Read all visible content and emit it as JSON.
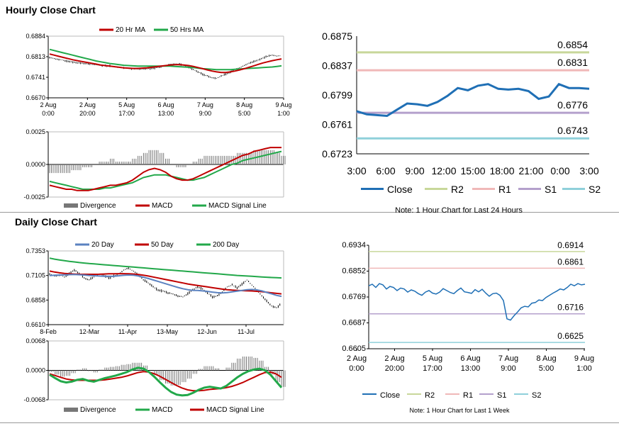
{
  "sections": {
    "hourly_title": "Hourly Close Chart",
    "daily_title": "Daily Close Chart"
  },
  "colors": {
    "red": "#c00000",
    "green": "#22a84a",
    "blue": "#1f6fb5",
    "bluegray": "#5b82c0",
    "r2": "#c8d79a",
    "r1": "#f0b8b8",
    "s1": "#b4a0cc",
    "s2": "#8fd0da",
    "gray": "#777777",
    "black": "#000000"
  },
  "chart_data": [
    {
      "id": "hourly_price",
      "type": "line",
      "title": "",
      "legend": [
        "20 Hr MA",
        "50 Hrs MA"
      ],
      "legend_colors": [
        "#c00000",
        "#22a84a"
      ],
      "ylim": [
        0.667,
        0.6884
      ],
      "yticks": [
        "0.6884",
        "0.6813",
        "0.6741",
        "0.6670"
      ],
      "xticks": [
        [
          "2 Aug",
          "0:00"
        ],
        [
          "2 Aug",
          "20:00"
        ],
        [
          "5 Aug",
          "17:00"
        ],
        [
          "6 Aug",
          "13:00"
        ],
        [
          "7 Aug",
          "9:00"
        ],
        [
          "8 Aug",
          "5:00"
        ],
        [
          "9 Aug",
          "1:00"
        ]
      ],
      "close": [
        0.681,
        0.6806,
        0.6803,
        0.68,
        0.6797,
        0.6794,
        0.6792,
        0.679,
        0.6788,
        0.6786,
        0.6784,
        0.6783,
        0.6782,
        0.6781,
        0.6779,
        0.6776,
        0.6774,
        0.6772,
        0.677,
        0.677,
        0.677,
        0.6771,
        0.6773,
        0.6775,
        0.6778,
        0.6782,
        0.6786,
        0.6788,
        0.6786,
        0.6782,
        0.6776,
        0.6768,
        0.676,
        0.6752,
        0.6746,
        0.674,
        0.6738,
        0.6745,
        0.6752,
        0.676,
        0.6768,
        0.6775,
        0.6782,
        0.679,
        0.6796,
        0.6802,
        0.6808,
        0.6814,
        0.6818,
        0.6815,
        0.6816
      ],
      "series": [
        {
          "name": "20 Hr MA",
          "values": [
            0.6822,
            0.6818,
            0.6814,
            0.681,
            0.6806,
            0.6802,
            0.6799,
            0.6796,
            0.6793,
            0.679,
            0.6787,
            0.6784,
            0.6782,
            0.678,
            0.6778,
            0.6776,
            0.6774,
            0.6773,
            0.6772,
            0.6772,
            0.6773,
            0.6774,
            0.6776,
            0.6778,
            0.678,
            0.6782,
            0.6784,
            0.6785,
            0.6785,
            0.6784,
            0.6782,
            0.6779,
            0.6775,
            0.6771,
            0.6767,
            0.6763,
            0.676,
            0.6758,
            0.6758,
            0.676,
            0.6763,
            0.6767,
            0.6771,
            0.6776,
            0.6781,
            0.6786,
            0.6791,
            0.6795,
            0.6799,
            0.6802,
            0.6805
          ]
        },
        {
          "name": "50 Hrs MA",
          "values": [
            0.6838,
            0.6834,
            0.683,
            0.6826,
            0.6822,
            0.6818,
            0.6814,
            0.681,
            0.6806,
            0.6802,
            0.6798,
            0.6795,
            0.6792,
            0.6789,
            0.6787,
            0.6785,
            0.6783,
            0.6782,
            0.6781,
            0.678,
            0.678,
            0.678,
            0.678,
            0.678,
            0.678,
            0.678,
            0.678,
            0.6779,
            0.6778,
            0.6777,
            0.6776,
            0.6775,
            0.6773,
            0.6771,
            0.677,
            0.6769,
            0.6768,
            0.6768,
            0.6768,
            0.6768,
            0.6769,
            0.677,
            0.6771,
            0.6772,
            0.6773,
            0.6774,
            0.6775,
            0.6776,
            0.6777,
            0.6779,
            0.6781
          ]
        }
      ]
    },
    {
      "id": "hourly_macd",
      "type": "line",
      "title": "",
      "legend": [
        "Divergence",
        "MACD",
        "MACD Signal Line"
      ],
      "legend_colors": [
        "#777777",
        "#c00000",
        "#22a84a"
      ],
      "ylim": [
        -0.0025,
        0.0025
      ],
      "yticks": [
        "0.0025",
        "0.0000",
        "-0.0025"
      ],
      "series": [
        {
          "name": "MACD",
          "values": [
            -0.0016,
            -0.0017,
            -0.0018,
            -0.0019,
            -0.0019,
            -0.002,
            -0.002,
            -0.002,
            -0.0019,
            -0.0018,
            -0.0017,
            -0.0016,
            -0.0016,
            -0.0015,
            -0.0014,
            -0.0012,
            -0.0009,
            -0.0006,
            -0.0004,
            -0.0003,
            -0.0004,
            -0.0006,
            -0.0009,
            -0.0011,
            -0.0012,
            -0.0012,
            -0.0011,
            -0.0009,
            -0.0007,
            -0.0005,
            -0.0003,
            -0.0001,
            0.0001,
            0.0003,
            0.0005,
            0.0007,
            0.0008,
            0.001,
            0.0011,
            0.0012,
            0.0013,
            0.0013,
            0.0013
          ]
        },
        {
          "name": "MACD Signal Line",
          "values": [
            -0.0013,
            -0.0014,
            -0.0015,
            -0.0016,
            -0.0017,
            -0.0018,
            -0.0019,
            -0.0019,
            -0.0019,
            -0.0019,
            -0.0018,
            -0.0018,
            -0.0017,
            -0.0016,
            -0.0015,
            -0.0014,
            -0.0012,
            -0.001,
            -0.0009,
            -0.0008,
            -0.0008,
            -0.0008,
            -0.0009,
            -0.001,
            -0.0011,
            -0.0012,
            -0.0012,
            -0.0011,
            -0.001,
            -0.0008,
            -0.0006,
            -0.0004,
            -0.0002,
            0.0,
            0.0001,
            0.0003,
            0.0004,
            0.0005,
            0.0006,
            0.0007,
            0.0008,
            0.0009,
            0.001
          ]
        }
      ]
    },
    {
      "id": "hourly_24h",
      "type": "line",
      "title": "",
      "xlabels": [
        "3:00",
        "6:00",
        "9:00",
        "12:00",
        "15:00",
        "18:00",
        "21:00",
        "0:00",
        "3:00"
      ],
      "yticks": [
        "0.6875",
        "0.6837",
        "0.6799",
        "0.6761",
        "0.6723"
      ],
      "ylim": [
        0.6723,
        0.6875
      ],
      "close": [
        0.6778,
        0.6774,
        0.6773,
        0.6772,
        0.678,
        0.6788,
        0.6787,
        0.6785,
        0.679,
        0.6798,
        0.6808,
        0.6805,
        0.6811,
        0.6813,
        0.6807,
        0.6806,
        0.6807,
        0.6804,
        0.6794,
        0.6797,
        0.6813,
        0.6808,
        0.6808,
        0.6807
      ],
      "levels": [
        {
          "name": "R2",
          "value": 0.6854,
          "label": "0.6854"
        },
        {
          "name": "R1",
          "value": 0.6831,
          "label": "0.6831"
        },
        {
          "name": "S1",
          "value": 0.6776,
          "label": "0.6776"
        },
        {
          "name": "S2",
          "value": 0.6743,
          "label": "0.6743"
        }
      ],
      "legend": [
        "Close",
        "R2",
        "R1",
        "S1",
        "S2"
      ],
      "note": "Note: 1 Hour Chart for Last 24 Hours"
    },
    {
      "id": "daily_price",
      "type": "line",
      "title": "",
      "legend": [
        "20 Day",
        "50 Day",
        "200 Day"
      ],
      "legend_colors": [
        "#5b82c0",
        "#c00000",
        "#22a84a"
      ],
      "ylim": [
        0.661,
        0.7353
      ],
      "yticks": [
        "0.7353",
        "0.7105",
        "0.6858",
        "0.6610"
      ],
      "xticks": [
        "8-Feb",
        "12-Mar",
        "11-Apr",
        "13-May",
        "12-Jun",
        "11-Jul"
      ],
      "close": [
        0.712,
        0.71,
        0.711,
        0.709,
        0.713,
        0.716,
        0.713,
        0.708,
        0.706,
        0.709,
        0.712,
        0.711,
        0.708,
        0.71,
        0.712,
        0.716,
        0.718,
        0.715,
        0.711,
        0.706,
        0.703,
        0.699,
        0.696,
        0.695,
        0.693,
        0.692,
        0.69,
        0.689,
        0.692,
        0.696,
        0.699,
        0.697,
        0.693,
        0.689,
        0.69,
        0.694,
        0.699,
        0.701,
        0.698,
        0.702,
        0.706,
        0.701,
        0.696,
        0.69,
        0.685,
        0.68,
        0.678,
        0.682
      ],
      "series": [
        {
          "name": "20 Day",
          "values": [
            0.7105,
            0.7108,
            0.711,
            0.7112,
            0.7114,
            0.7115,
            0.7113,
            0.711,
            0.7106,
            0.7103,
            0.71,
            0.7098,
            0.7097,
            0.7098,
            0.7102,
            0.7107,
            0.711,
            0.7108,
            0.71,
            0.7088,
            0.7075,
            0.706,
            0.7045,
            0.703,
            0.7015,
            0.7,
            0.6985,
            0.6972,
            0.6962,
            0.6956,
            0.6954,
            0.695,
            0.6945,
            0.6938,
            0.6932,
            0.693,
            0.6933,
            0.694,
            0.6948,
            0.6955,
            0.6962,
            0.6964,
            0.696,
            0.695,
            0.6935,
            0.692,
            0.6905,
            0.6895
          ]
        },
        {
          "name": "50 Day",
          "values": [
            0.715,
            0.714,
            0.7132,
            0.7126,
            0.7122,
            0.712,
            0.7118,
            0.7117,
            0.7117,
            0.7117,
            0.7118,
            0.712,
            0.7122,
            0.7123,
            0.7124,
            0.7124,
            0.7123,
            0.712,
            0.7115,
            0.7108,
            0.71,
            0.709,
            0.708,
            0.707,
            0.706,
            0.705,
            0.704,
            0.703,
            0.702,
            0.7012,
            0.7005,
            0.6998,
            0.699,
            0.6982,
            0.6975,
            0.6968,
            0.6962,
            0.6958,
            0.6955,
            0.6953,
            0.6951,
            0.6949,
            0.6946,
            0.6942,
            0.6937,
            0.6931,
            0.6925,
            0.692
          ]
        },
        {
          "name": "200 Day",
          "values": [
            0.728,
            0.727,
            0.7262,
            0.7255,
            0.7248,
            0.7242,
            0.7236,
            0.7231,
            0.7226,
            0.7222,
            0.7218,
            0.7214,
            0.721,
            0.7206,
            0.7202,
            0.7198,
            0.7194,
            0.719,
            0.7186,
            0.7182,
            0.7178,
            0.7174,
            0.717,
            0.7166,
            0.7162,
            0.7158,
            0.7154,
            0.715,
            0.7146,
            0.7142,
            0.7138,
            0.7134,
            0.713,
            0.7126,
            0.7122,
            0.7118,
            0.7114,
            0.711,
            0.7106,
            0.7103,
            0.71,
            0.7097,
            0.7094,
            0.7091,
            0.7088,
            0.7085,
            0.7083,
            0.7081
          ]
        }
      ]
    },
    {
      "id": "daily_macd",
      "type": "line",
      "title": "",
      "legend": [
        "Divergence",
        "MACD",
        "MACD Signal Line"
      ],
      "legend_colors": [
        "#777777",
        "#22a84a",
        "#c00000"
      ],
      "ylim": [
        -0.0068,
        0.0068
      ],
      "yticks": [
        "0.0068",
        "0.0000",
        "-0.0068"
      ],
      "series": [
        {
          "name": "MACD",
          "values": [
            -0.001,
            -0.0018,
            -0.0025,
            -0.0028,
            -0.0026,
            -0.0022,
            -0.002,
            -0.0024,
            -0.0026,
            -0.0022,
            -0.0018,
            -0.0015,
            -0.0012,
            -0.0008,
            -0.0004,
            0.0002,
            0.0006,
            0.0004,
            -0.0004,
            -0.0015,
            -0.0028,
            -0.004,
            -0.005,
            -0.0056,
            -0.0058,
            -0.0057,
            -0.0052,
            -0.0045,
            -0.004,
            -0.0038,
            -0.004,
            -0.0042,
            -0.0036,
            -0.0026,
            -0.0016,
            -0.0008,
            -0.0002,
            0.0002,
            0.0004,
            0.0,
            -0.001,
            -0.0025,
            -0.004
          ]
        },
        {
          "name": "MACD Signal Line",
          "values": [
            -0.0008,
            -0.0012,
            -0.0016,
            -0.002,
            -0.0022,
            -0.0023,
            -0.0023,
            -0.0023,
            -0.0023,
            -0.0023,
            -0.0022,
            -0.002,
            -0.0018,
            -0.0016,
            -0.0013,
            -0.0009,
            -0.0005,
            -0.0003,
            -0.0004,
            -0.0008,
            -0.0014,
            -0.0021,
            -0.0028,
            -0.0035,
            -0.0041,
            -0.0045,
            -0.0047,
            -0.0047,
            -0.0046,
            -0.0044,
            -0.0043,
            -0.0042,
            -0.004,
            -0.0037,
            -0.0033,
            -0.0028,
            -0.0022,
            -0.0016,
            -0.001,
            -0.0005,
            -0.0004,
            -0.0008,
            -0.0016
          ]
        }
      ]
    },
    {
      "id": "daily_week",
      "type": "line",
      "title": "",
      "ylim": [
        0.6605,
        0.6934
      ],
      "yticks": [
        "0.6934",
        "0.6852",
        "0.6769",
        "0.6687",
        "0.6605"
      ],
      "xticks": [
        [
          "2 Aug",
          "0:00"
        ],
        [
          "2 Aug",
          "20:00"
        ],
        [
          "5 Aug",
          "17:00"
        ],
        [
          "6 Aug",
          "13:00"
        ],
        [
          "7 Aug",
          "9:00"
        ],
        [
          "8 Aug",
          "5:00"
        ],
        [
          "9 Aug",
          "1:00"
        ]
      ],
      "close": [
        0.6805,
        0.681,
        0.68,
        0.6812,
        0.6808,
        0.6795,
        0.6803,
        0.68,
        0.679,
        0.6798,
        0.6795,
        0.6785,
        0.6792,
        0.6788,
        0.678,
        0.6775,
        0.6785,
        0.679,
        0.6782,
        0.6779,
        0.6785,
        0.6796,
        0.679,
        0.6784,
        0.678,
        0.679,
        0.6798,
        0.6786,
        0.6784,
        0.6781,
        0.6793,
        0.6786,
        0.6794,
        0.6782,
        0.6772,
        0.678,
        0.6782,
        0.6775,
        0.6758,
        0.67,
        0.6696,
        0.671,
        0.6722,
        0.6735,
        0.674,
        0.6738,
        0.675,
        0.6752,
        0.676,
        0.6758,
        0.6768,
        0.6775,
        0.6782,
        0.6788,
        0.6795,
        0.6792,
        0.68,
        0.681,
        0.6805,
        0.6812,
        0.6808,
        0.681
      ],
      "levels": [
        {
          "name": "R2",
          "value": 0.6914,
          "label": "0.6914"
        },
        {
          "name": "R1",
          "value": 0.6861,
          "label": "0.6861"
        },
        {
          "name": "S1",
          "value": 0.6716,
          "label": "0.6716"
        },
        {
          "name": "S2",
          "value": 0.6625,
          "label": "0.6625"
        }
      ],
      "legend": [
        "Close",
        "R2",
        "R1",
        "S1",
        "S2"
      ],
      "note": "Note: 1 Hour Chart for Last 1 Week"
    }
  ]
}
